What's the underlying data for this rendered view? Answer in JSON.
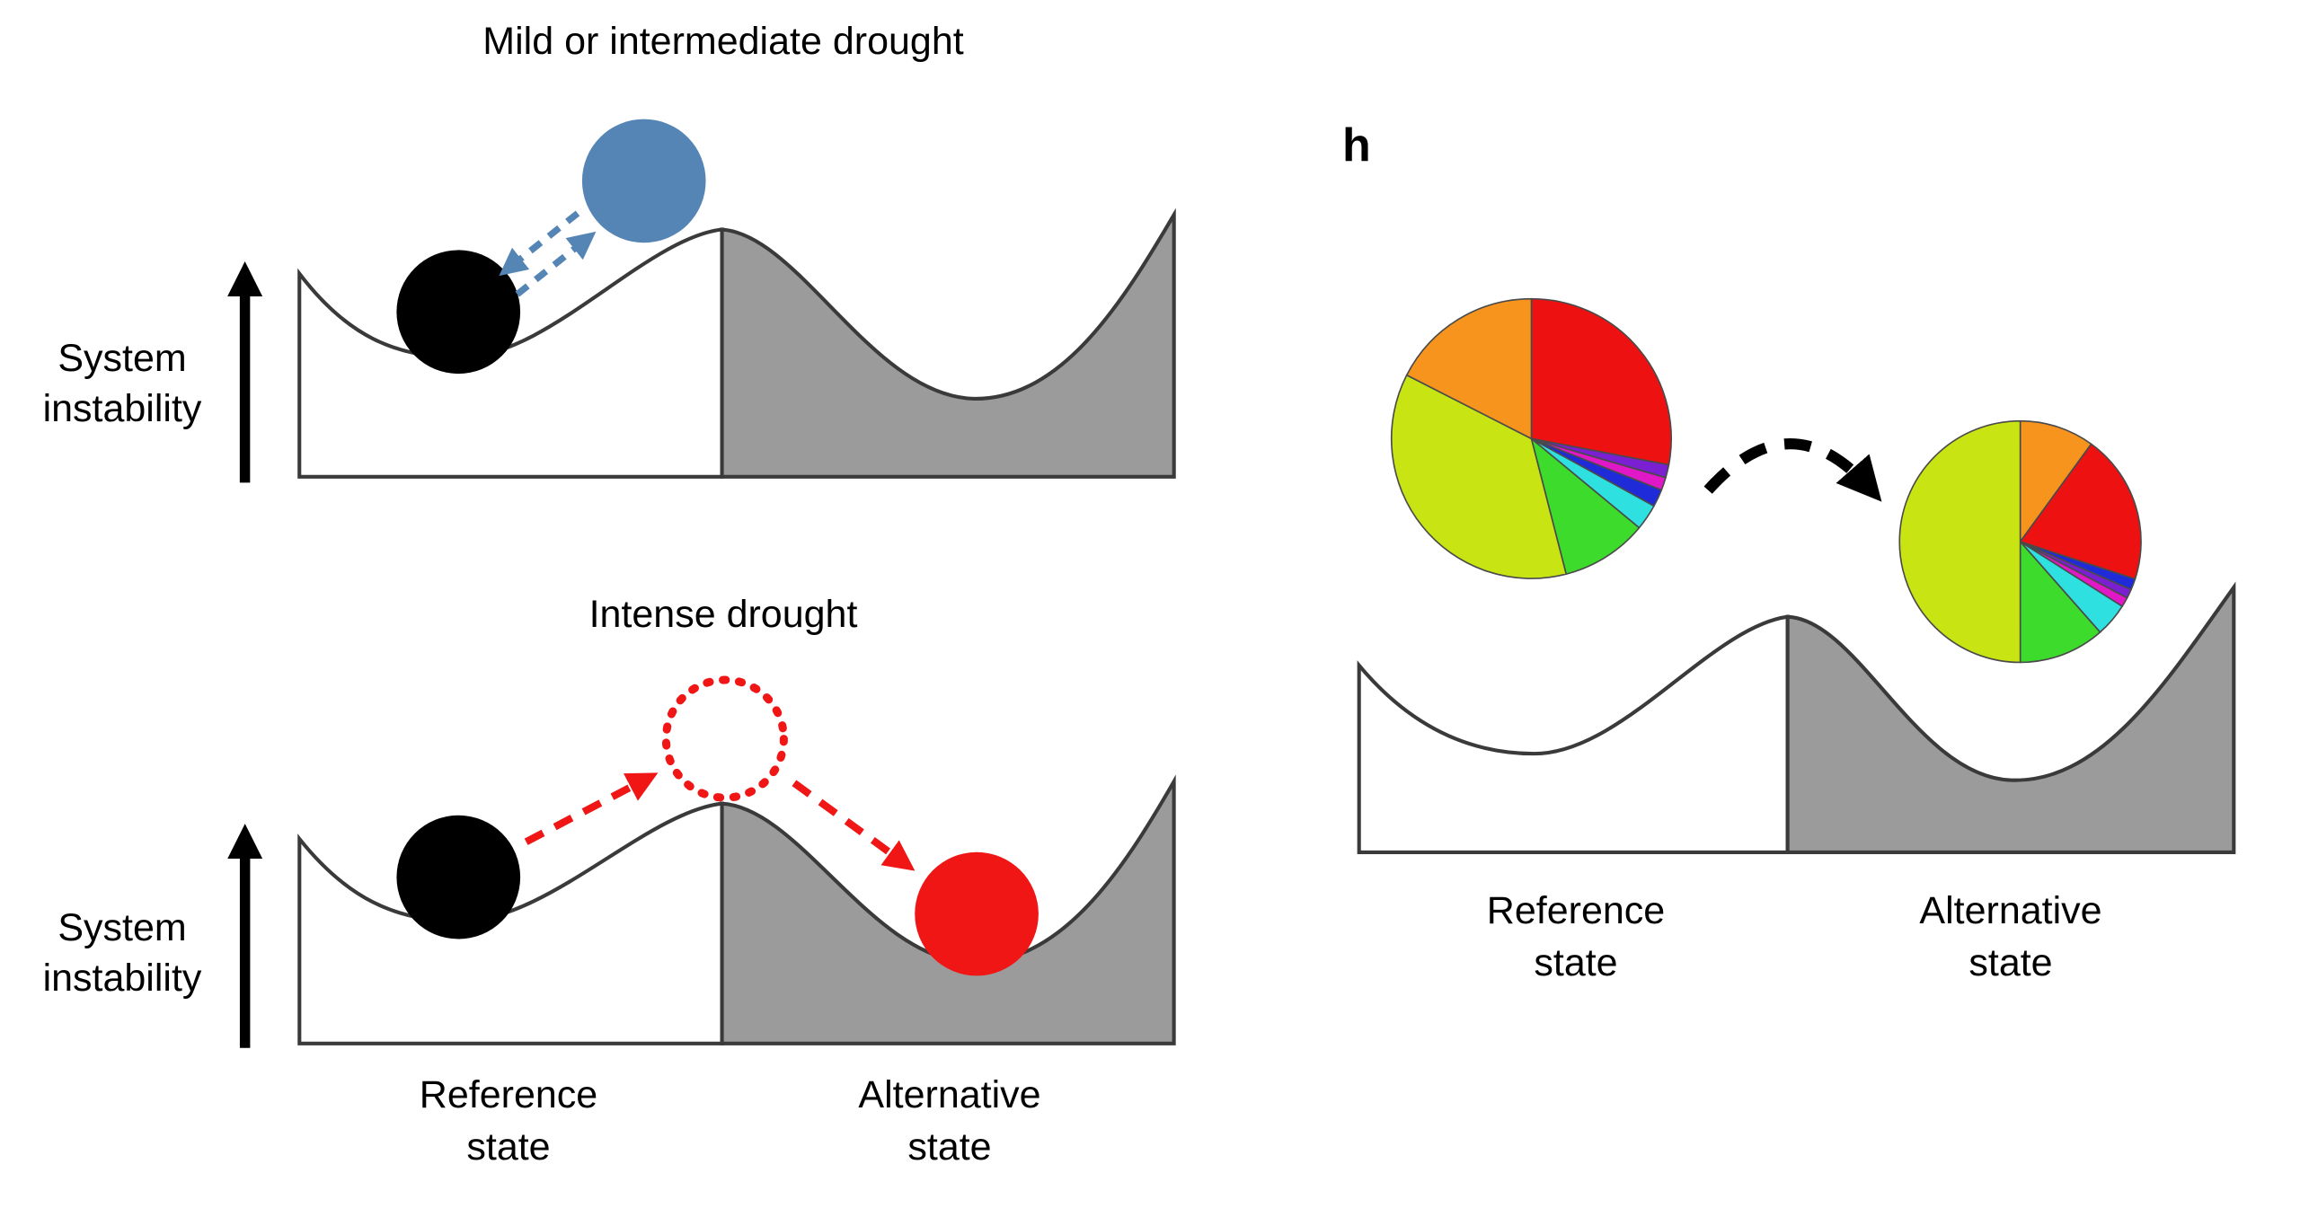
{
  "colors": {
    "alternative_basin_gray": "#9b9b9b",
    "outline": "#3a3a3a",
    "black": "#000000",
    "blue": "#5585b5",
    "red": "#f11616"
  },
  "left_top": {
    "title": "Mild or intermediate drought",
    "axis_label": "System\ninstability"
  },
  "left_bottom": {
    "title": "Intense drought",
    "axis_label": "System\ninstability",
    "x_labels": [
      "Reference\nstate",
      "Alternative\nstate"
    ]
  },
  "right": {
    "panel_letter": "h",
    "x_labels": [
      "Reference\nstate",
      "Alternative\nstate"
    ],
    "pies": {
      "reference": {
        "slices": [
          {
            "name": "red",
            "color": "#ee1111",
            "fraction": 0.28
          },
          {
            "name": "purple",
            "color": "#7a1fd2",
            "fraction": 0.015
          },
          {
            "name": "magenta",
            "color": "#e018c8",
            "fraction": 0.015
          },
          {
            "name": "blue",
            "color": "#1f2bd8",
            "fraction": 0.02
          },
          {
            "name": "cyan",
            "color": "#2ee0e0",
            "fraction": 0.03
          },
          {
            "name": "green",
            "color": "#3cdb2c",
            "fraction": 0.1
          },
          {
            "name": "chartreuse",
            "color": "#c8e412",
            "fraction": 0.365
          },
          {
            "name": "orange",
            "color": "#f7941e",
            "fraction": 0.175
          }
        ]
      },
      "alternative": {
        "slices": [
          {
            "name": "orange",
            "color": "#f7941e",
            "fraction": 0.1
          },
          {
            "name": "red",
            "color": "#ee1111",
            "fraction": 0.2
          },
          {
            "name": "blue",
            "color": "#1f2bd8",
            "fraction": 0.015
          },
          {
            "name": "purple",
            "color": "#7a1fd2",
            "fraction": 0.012
          },
          {
            "name": "magenta",
            "color": "#e018c8",
            "fraction": 0.013
          },
          {
            "name": "cyan",
            "color": "#2ee0e0",
            "fraction": 0.045
          },
          {
            "name": "green",
            "color": "#3cdb2c",
            "fraction": 0.115
          },
          {
            "name": "chartreuse",
            "color": "#c8e412",
            "fraction": 0.5
          }
        ]
      }
    }
  }
}
